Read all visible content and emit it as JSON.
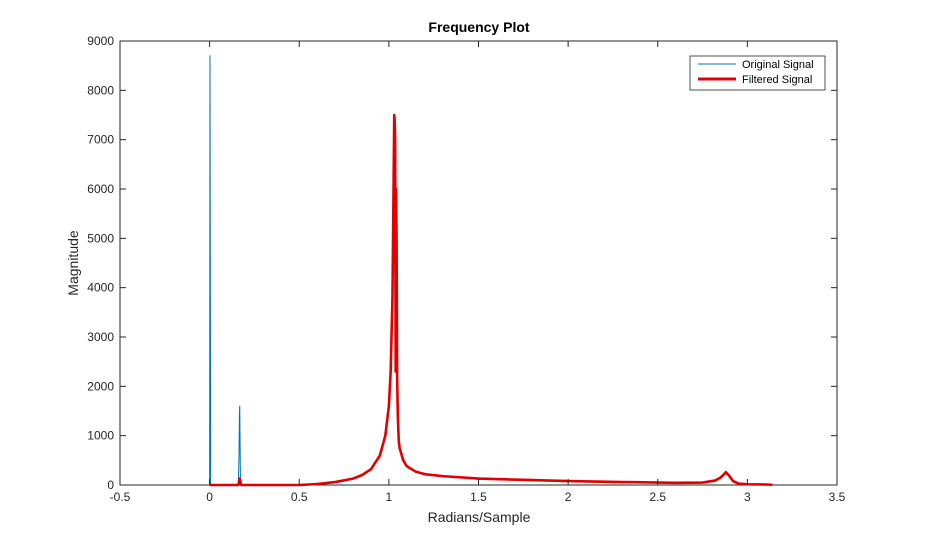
{
  "chart_data": {
    "type": "line",
    "title": "Frequency Plot",
    "xlabel": "Radians/Sample",
    "ylabel": "Magnitude",
    "xlim": [
      -0.5,
      3.5
    ],
    "ylim": [
      0,
      9000
    ],
    "xticks": [
      -0.5,
      0,
      0.5,
      1,
      1.5,
      2,
      2.5,
      3,
      3.5
    ],
    "xtick_labels": [
      "-0.5",
      "0",
      "0.5",
      "1",
      "1.5",
      "2",
      "2.5",
      "3",
      "3.5"
    ],
    "yticks": [
      0,
      1000,
      2000,
      3000,
      4000,
      5000,
      6000,
      7000,
      8000,
      9000
    ],
    "ytick_labels": [
      "0",
      "1000",
      "2000",
      "3000",
      "4000",
      "5000",
      "6000",
      "7000",
      "8000",
      "9000"
    ],
    "legend_position": "top-right",
    "grid": false,
    "series": [
      {
        "name": "Original Signal",
        "color": "#0072BD",
        "x": [
          0.0,
          0.002,
          0.004,
          0.006,
          0.02,
          0.16,
          0.164,
          0.166,
          0.168,
          0.17,
          0.172,
          0.176,
          0.2
        ],
        "y": [
          10,
          8700,
          4000,
          10,
          5,
          10,
          600,
          1400,
          1600,
          800,
          40,
          10,
          5
        ]
      },
      {
        "name": "Filtered Signal",
        "color": "#E00000",
        "x": [
          0.0,
          0.16,
          0.168,
          0.176,
          0.3,
          0.5,
          0.6,
          0.7,
          0.8,
          0.85,
          0.9,
          0.95,
          0.98,
          1.0,
          1.01,
          1.02,
          1.025,
          1.03,
          1.032,
          1.035,
          1.038,
          1.04,
          1.043,
          1.046,
          1.05,
          1.055,
          1.06,
          1.08,
          1.1,
          1.15,
          1.2,
          1.3,
          1.5,
          1.8,
          2.0,
          2.3,
          2.6,
          2.75,
          2.82,
          2.85,
          2.87,
          2.88,
          2.9,
          2.92,
          2.95,
          3.0,
          3.1,
          3.14
        ],
        "y": [
          0,
          0,
          130,
          0,
          0,
          0,
          20,
          60,
          130,
          200,
          320,
          600,
          1000,
          1600,
          2300,
          3800,
          5600,
          7500,
          7400,
          7000,
          2300,
          6000,
          5000,
          2200,
          1400,
          900,
          750,
          500,
          380,
          270,
          220,
          180,
          130,
          100,
          80,
          60,
          45,
          50,
          90,
          150,
          220,
          260,
          180,
          80,
          30,
          15,
          10,
          5
        ]
      }
    ]
  }
}
